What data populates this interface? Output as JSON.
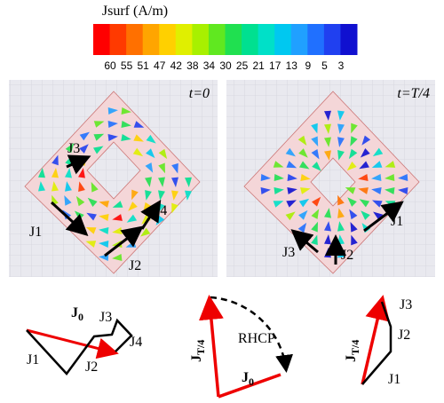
{
  "colorbar": {
    "title": "Jsurf (A/m)",
    "labels": [
      60,
      55,
      51,
      47,
      42,
      38,
      34,
      30,
      25,
      21,
      17,
      13,
      9,
      5,
      3
    ]
  },
  "panels": [
    {
      "time": "t=0",
      "labels": [
        "J3",
        "J1",
        "J4",
        "J2"
      ]
    },
    {
      "time": "t=T/4",
      "labels": [
        "J1",
        "J3",
        "J2"
      ]
    }
  ],
  "diagrams": {
    "left": {
      "j0": {
        "base": "J",
        "sub": "0"
      },
      "labels": [
        "J3",
        "J4",
        "J1",
        "J2"
      ]
    },
    "middle": {
      "jt": {
        "base": "J",
        "sub": "T/4"
      },
      "j0": {
        "base": "J",
        "sub": "0"
      },
      "label": "RHCP"
    },
    "right": {
      "jt": {
        "base": "J",
        "sub": "T/4"
      },
      "labels": [
        "J3",
        "J2",
        "J1"
      ]
    }
  }
}
